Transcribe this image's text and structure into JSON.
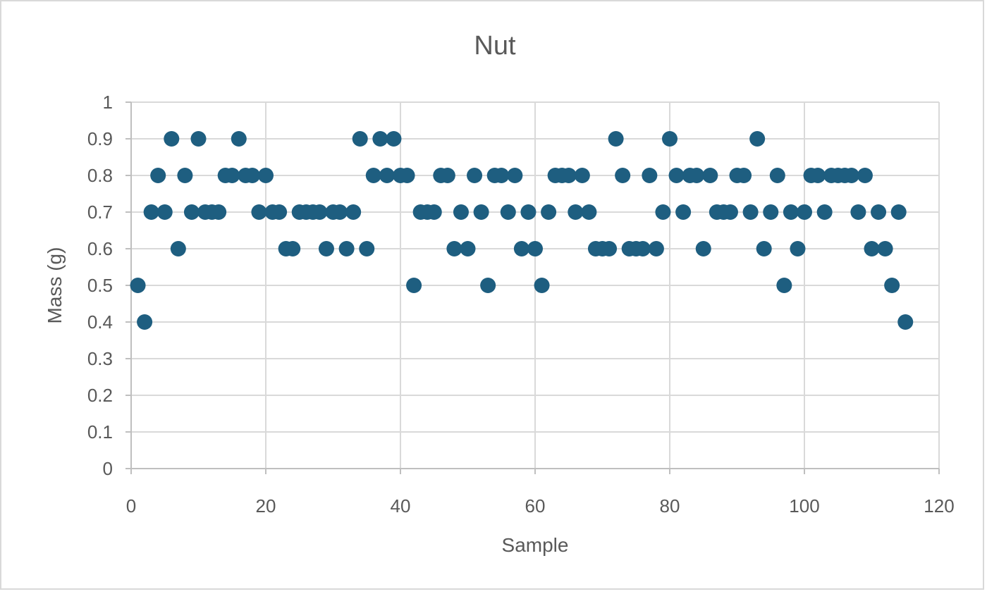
{
  "chart": {
    "title": "Nut",
    "xlabel": "Sample",
    "ylabel": "Mass (g)"
  },
  "chart_data": {
    "type": "scatter",
    "title": "Nut",
    "xlabel": "Sample",
    "ylabel": "Mass (g)",
    "xlim": [
      0,
      120
    ],
    "ylim": [
      0,
      1
    ],
    "x_ticks": [
      0,
      20,
      40,
      60,
      80,
      100,
      120
    ],
    "y_ticks": [
      0,
      0.1,
      0.2,
      0.3,
      0.4,
      0.5,
      0.6,
      0.7,
      0.8,
      0.9,
      1
    ],
    "y_tick_labels": [
      "0",
      "0.1",
      "0.2",
      "0.3",
      "0.4",
      "0.5",
      "0.6",
      "0.7",
      "0.8",
      "0.9",
      "1"
    ],
    "grid": true,
    "legend": false,
    "marker_color": "#1e5e80",
    "gridline_color": "#d9d9d9",
    "axis_color": "#bfbfbf",
    "text_color": "#595959",
    "points": [
      [
        1,
        0.5
      ],
      [
        2,
        0.4
      ],
      [
        3,
        0.7
      ],
      [
        4,
        0.8
      ],
      [
        5,
        0.7
      ],
      [
        6,
        0.9
      ],
      [
        7,
        0.6
      ],
      [
        8,
        0.8
      ],
      [
        9,
        0.7
      ],
      [
        10,
        0.9
      ],
      [
        11,
        0.7
      ],
      [
        12,
        0.7
      ],
      [
        13,
        0.7
      ],
      [
        14,
        0.8
      ],
      [
        15,
        0.8
      ],
      [
        16,
        0.9
      ],
      [
        17,
        0.8
      ],
      [
        18,
        0.8
      ],
      [
        19,
        0.7
      ],
      [
        20,
        0.8
      ],
      [
        21,
        0.7
      ],
      [
        22,
        0.7
      ],
      [
        23,
        0.6
      ],
      [
        24,
        0.6
      ],
      [
        25,
        0.7
      ],
      [
        26,
        0.7
      ],
      [
        27,
        0.7
      ],
      [
        28,
        0.7
      ],
      [
        29,
        0.6
      ],
      [
        30,
        0.7
      ],
      [
        31,
        0.7
      ],
      [
        32,
        0.6
      ],
      [
        33,
        0.7
      ],
      [
        34,
        0.9
      ],
      [
        35,
        0.6
      ],
      [
        36,
        0.8
      ],
      [
        37,
        0.9
      ],
      [
        38,
        0.8
      ],
      [
        39,
        0.9
      ],
      [
        40,
        0.8
      ],
      [
        41,
        0.8
      ],
      [
        42,
        0.5
      ],
      [
        43,
        0.7
      ],
      [
        44,
        0.7
      ],
      [
        45,
        0.7
      ],
      [
        46,
        0.8
      ],
      [
        47,
        0.8
      ],
      [
        48,
        0.6
      ],
      [
        49,
        0.7
      ],
      [
        50,
        0.6
      ],
      [
        51,
        0.8
      ],
      [
        52,
        0.7
      ],
      [
        53,
        0.5
      ],
      [
        54,
        0.8
      ],
      [
        55,
        0.8
      ],
      [
        56,
        0.7
      ],
      [
        57,
        0.8
      ],
      [
        58,
        0.6
      ],
      [
        59,
        0.7
      ],
      [
        60,
        0.6
      ],
      [
        61,
        0.5
      ],
      [
        62,
        0.7
      ],
      [
        63,
        0.8
      ],
      [
        64,
        0.8
      ],
      [
        65,
        0.8
      ],
      [
        66,
        0.7
      ],
      [
        67,
        0.8
      ],
      [
        68,
        0.7
      ],
      [
        69,
        0.6
      ],
      [
        70,
        0.6
      ],
      [
        71,
        0.6
      ],
      [
        72,
        0.9
      ],
      [
        73,
        0.8
      ],
      [
        74,
        0.6
      ],
      [
        75,
        0.6
      ],
      [
        76,
        0.6
      ],
      [
        77,
        0.8
      ],
      [
        78,
        0.6
      ],
      [
        79,
        0.7
      ],
      [
        80,
        0.9
      ],
      [
        81,
        0.8
      ],
      [
        82,
        0.7
      ],
      [
        83,
        0.8
      ],
      [
        84,
        0.8
      ],
      [
        85,
        0.6
      ],
      [
        86,
        0.8
      ],
      [
        87,
        0.7
      ],
      [
        88,
        0.7
      ],
      [
        89,
        0.7
      ],
      [
        90,
        0.8
      ],
      [
        91,
        0.8
      ],
      [
        92,
        0.7
      ],
      [
        93,
        0.9
      ],
      [
        94,
        0.6
      ],
      [
        95,
        0.7
      ],
      [
        96,
        0.8
      ],
      [
        97,
        0.5
      ],
      [
        98,
        0.7
      ],
      [
        99,
        0.6
      ],
      [
        100,
        0.7
      ],
      [
        101,
        0.8
      ],
      [
        102,
        0.8
      ],
      [
        103,
        0.7
      ],
      [
        104,
        0.8
      ],
      [
        105,
        0.8
      ],
      [
        106,
        0.8
      ],
      [
        107,
        0.8
      ],
      [
        108,
        0.7
      ],
      [
        109,
        0.8
      ],
      [
        110,
        0.6
      ],
      [
        111,
        0.7
      ],
      [
        112,
        0.6
      ],
      [
        113,
        0.5
      ],
      [
        114,
        0.7
      ],
      [
        115,
        0.4
      ]
    ]
  }
}
